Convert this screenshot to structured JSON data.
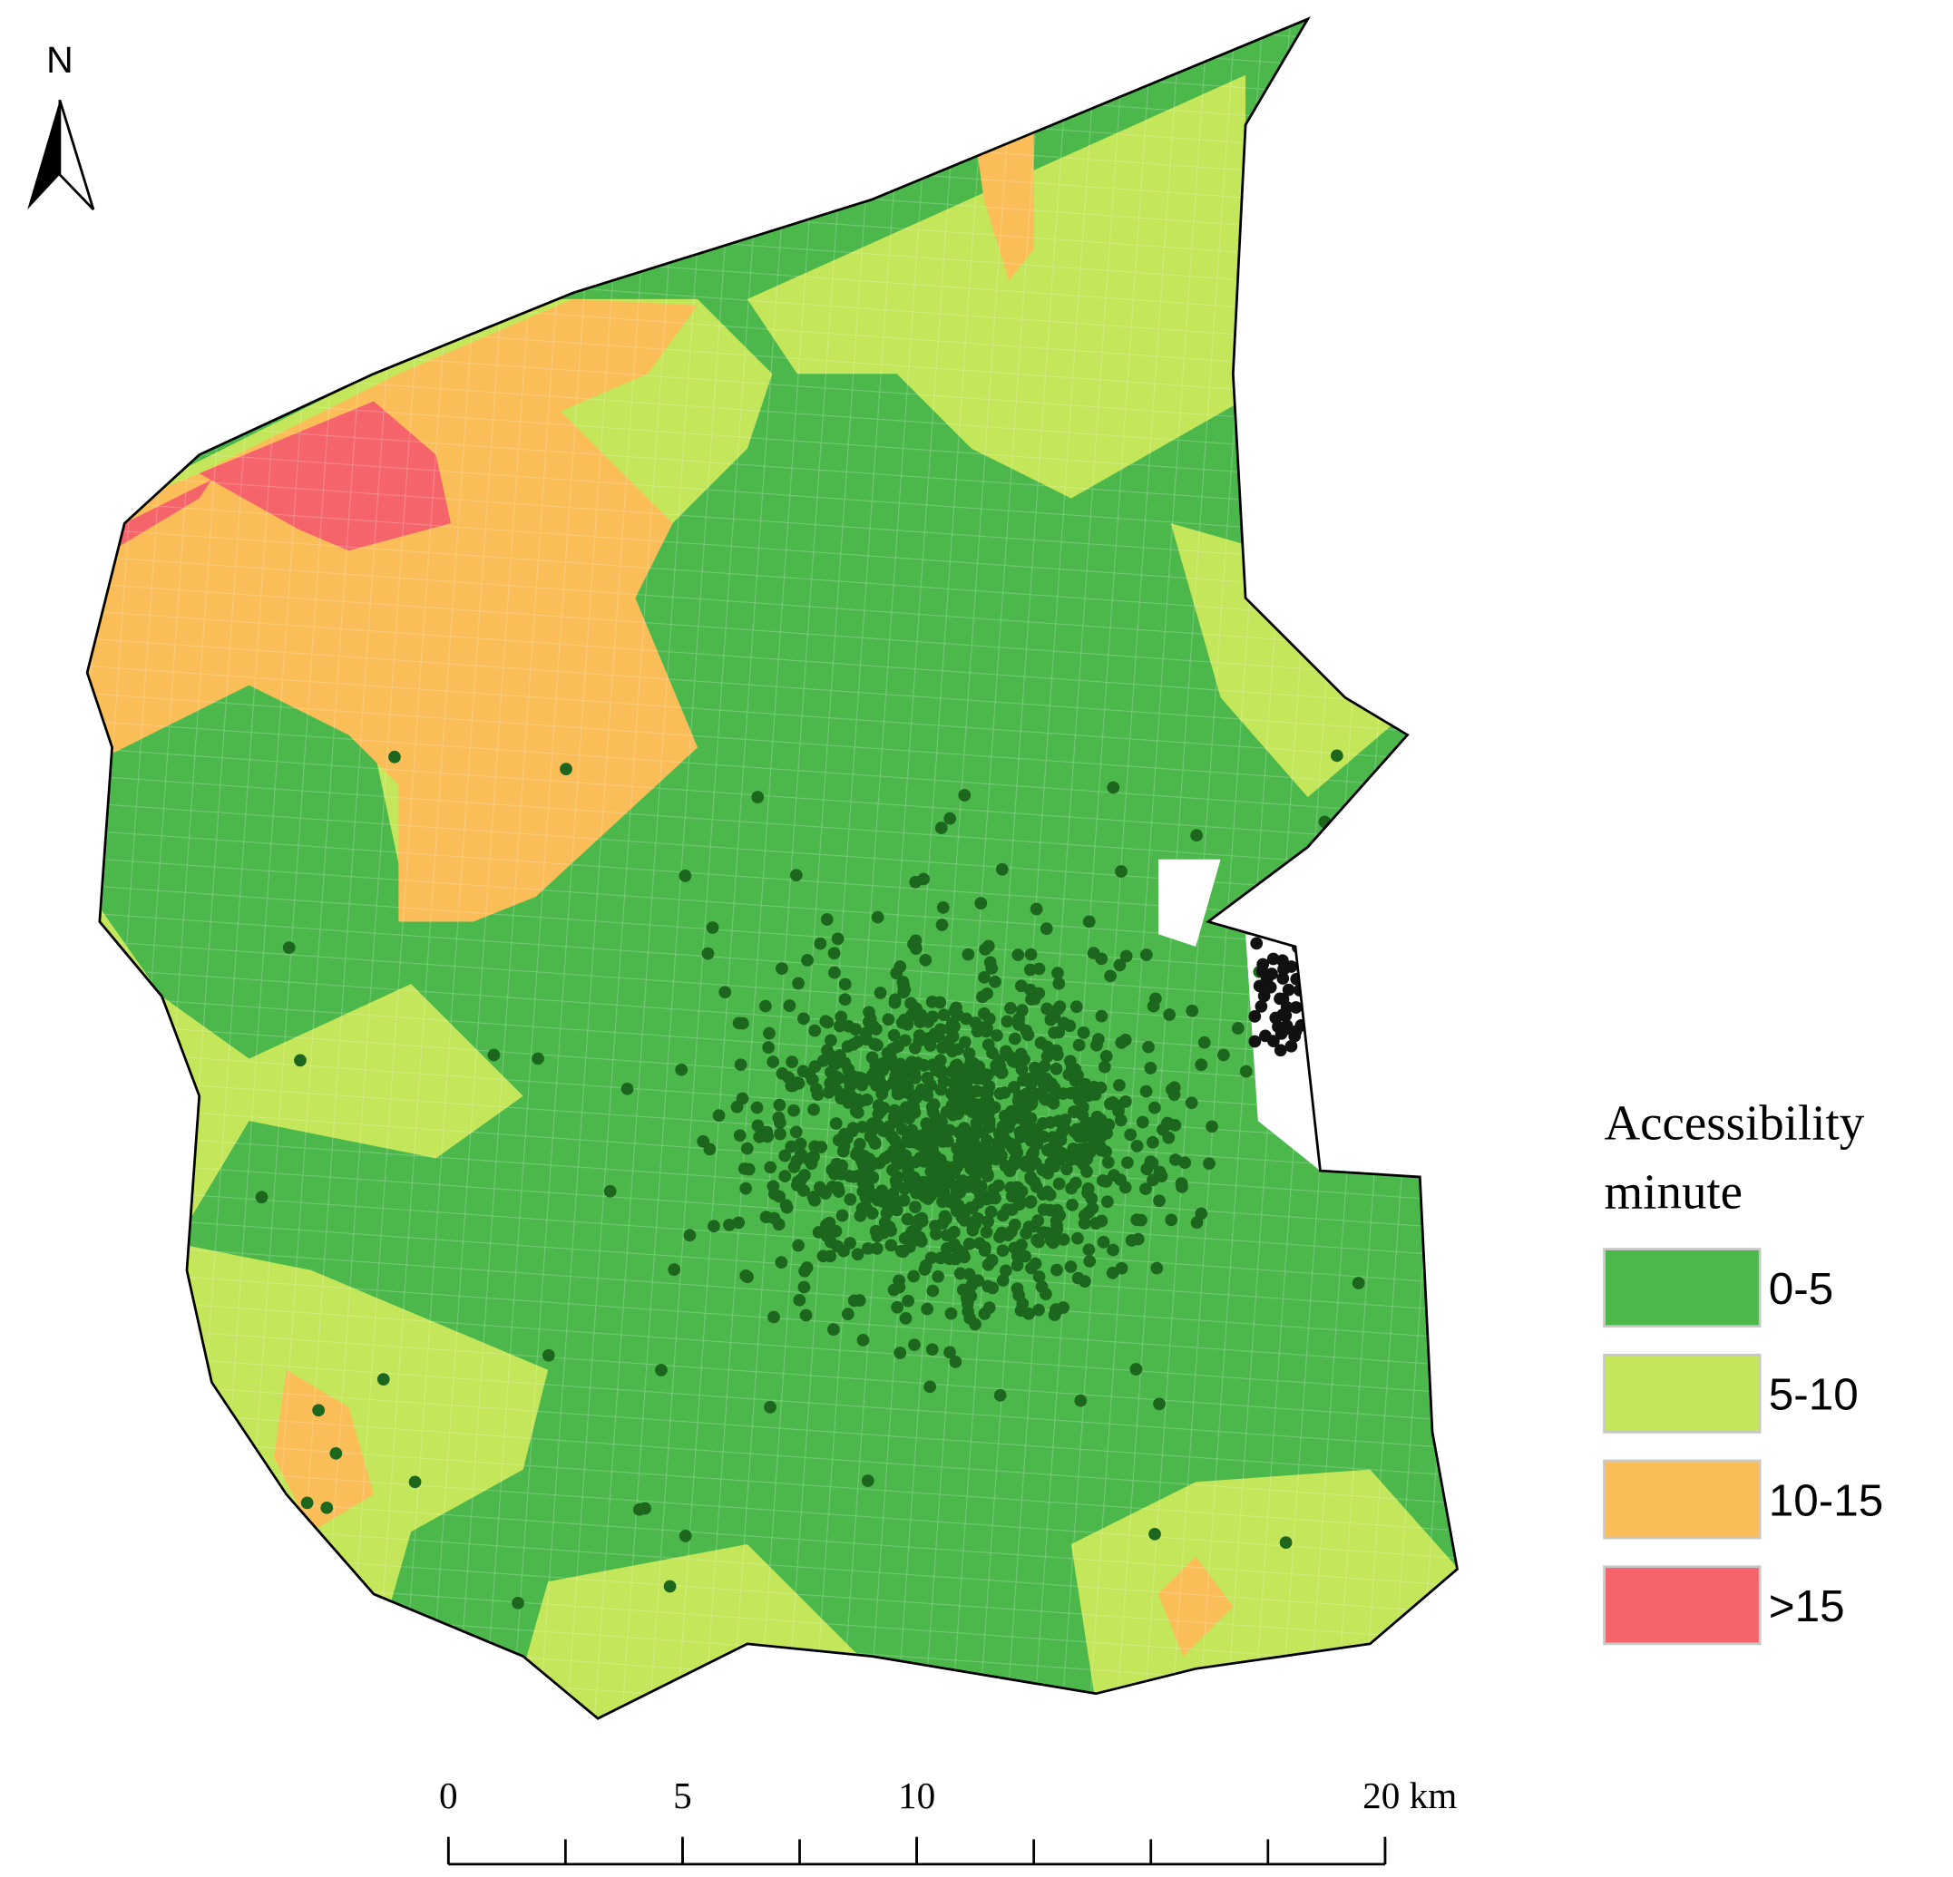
{
  "north_arrow": {
    "label": "N"
  },
  "legend": {
    "title_lines": [
      "Accessibility",
      "minute"
    ],
    "items": [
      {
        "label": "0-5",
        "color": "#4cb84c"
      },
      {
        "label": "5-10",
        "color": "#c4e65a"
      },
      {
        "label": "10-15",
        "color": "#fbbd57"
      },
      {
        "label": ">15",
        "color": "#f5646a"
      }
    ]
  },
  "scale_bar": {
    "xlim": [
      0,
      20
    ],
    "ticks": [
      0,
      5,
      10,
      {
        "value": 20,
        "label": "20 km"
      }
    ]
  }
}
